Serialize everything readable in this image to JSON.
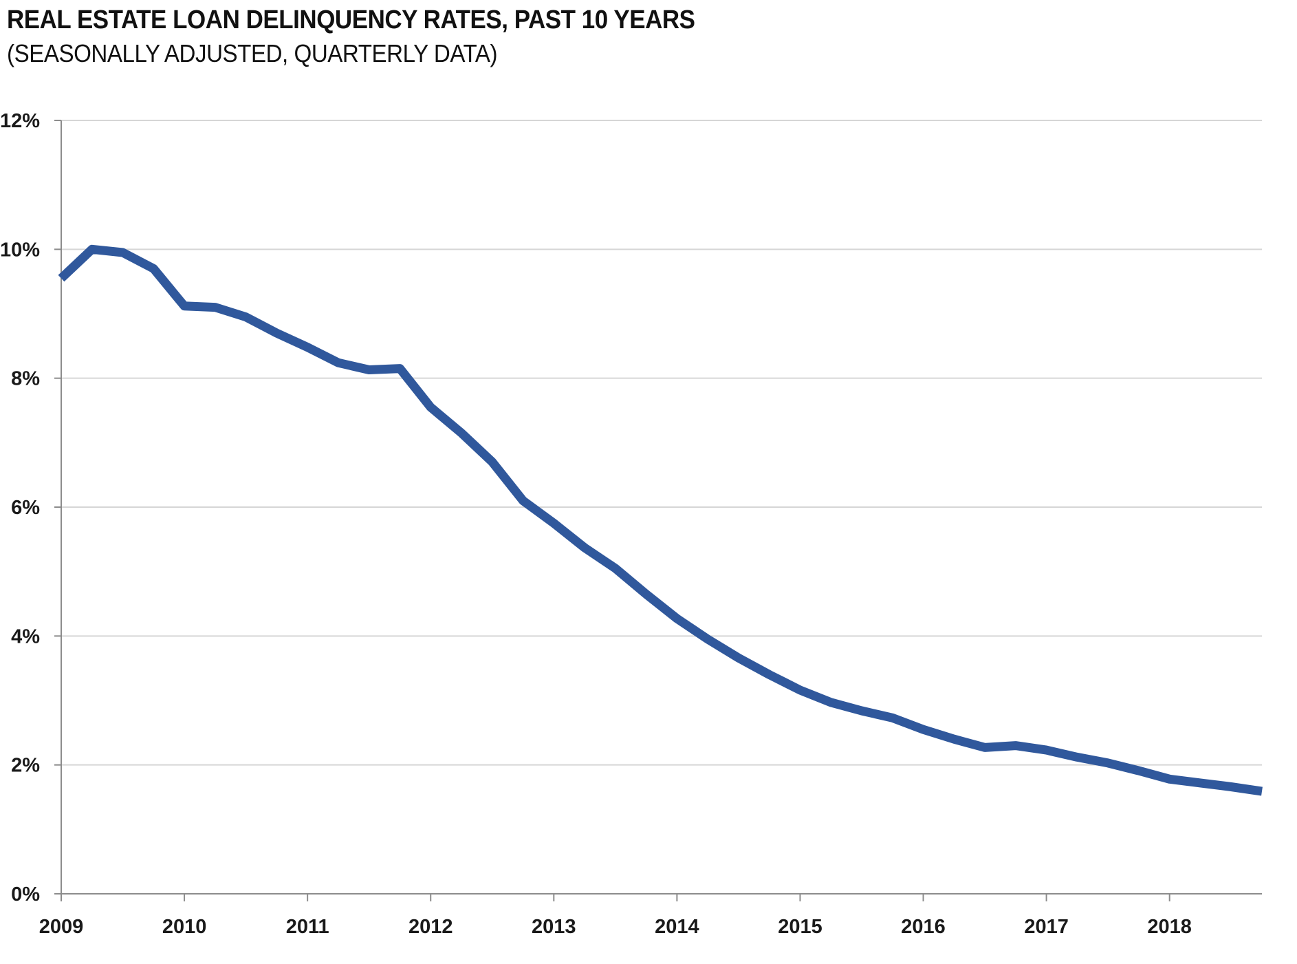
{
  "title": "REAL ESTATE LOAN DELINQUENCY RATES, PAST 10 YEARS",
  "subtitle": "(SEASONALLY ADJUSTED, QUARTERLY DATA)",
  "chart_data": {
    "type": "line",
    "title": "REAL ESTATE LOAN DELINQUENCY RATES, PAST 10 YEARS",
    "subtitle": "(SEASONALLY ADJUSTED, QUARTERLY DATA)",
    "x": [
      "2009 Q1",
      "2009 Q2",
      "2009 Q3",
      "2009 Q4",
      "2010 Q1",
      "2010 Q2",
      "2010 Q3",
      "2010 Q4",
      "2011 Q1",
      "2011 Q2",
      "2011 Q3",
      "2011 Q4",
      "2012 Q1",
      "2012 Q2",
      "2012 Q3",
      "2012 Q4",
      "2013 Q1",
      "2013 Q2",
      "2013 Q3",
      "2013 Q4",
      "2014 Q1",
      "2014 Q2",
      "2014 Q3",
      "2014 Q4",
      "2015 Q1",
      "2015 Q2",
      "2015 Q3",
      "2015 Q4",
      "2016 Q1",
      "2016 Q2",
      "2016 Q3",
      "2016 Q4",
      "2017 Q1",
      "2017 Q2",
      "2017 Q3",
      "2017 Q4",
      "2018 Q1",
      "2018 Q2",
      "2018 Q3",
      "2018 Q4"
    ],
    "series": [
      {
        "name": "Real estate loan delinquency rate (%)",
        "values": [
          9.55,
          10.0,
          9.95,
          9.7,
          9.12,
          9.1,
          8.95,
          8.7,
          8.48,
          8.24,
          8.13,
          8.15,
          7.55,
          7.15,
          6.7,
          6.1,
          5.75,
          5.37,
          5.05,
          4.65,
          4.27,
          3.95,
          3.66,
          3.4,
          3.16,
          2.97,
          2.84,
          2.73,
          2.55,
          2.4,
          2.27,
          2.3,
          2.23,
          2.12,
          2.03,
          1.91,
          1.78,
          1.72,
          1.66,
          1.59
        ]
      }
    ],
    "x_tick_labels": [
      "2009",
      "2010",
      "2011",
      "2012",
      "2013",
      "2014",
      "2015",
      "2016",
      "2017",
      "2018"
    ],
    "x_ticks_every_n_points": 4,
    "y_tick_labels": [
      "0%",
      "2%",
      "4%",
      "6%",
      "8%",
      "10%",
      "12%"
    ],
    "y_tick_values": [
      0,
      2,
      4,
      6,
      8,
      10,
      12
    ],
    "ylim": [
      0,
      12
    ],
    "y_unit": "%",
    "grid": "horizontal-only",
    "legend": "none",
    "markers": "none",
    "colors": {
      "line": "#30589C",
      "gridline": "#D6D6D6",
      "axis": "#8C8C8C",
      "text": "#1A1A1A"
    }
  }
}
